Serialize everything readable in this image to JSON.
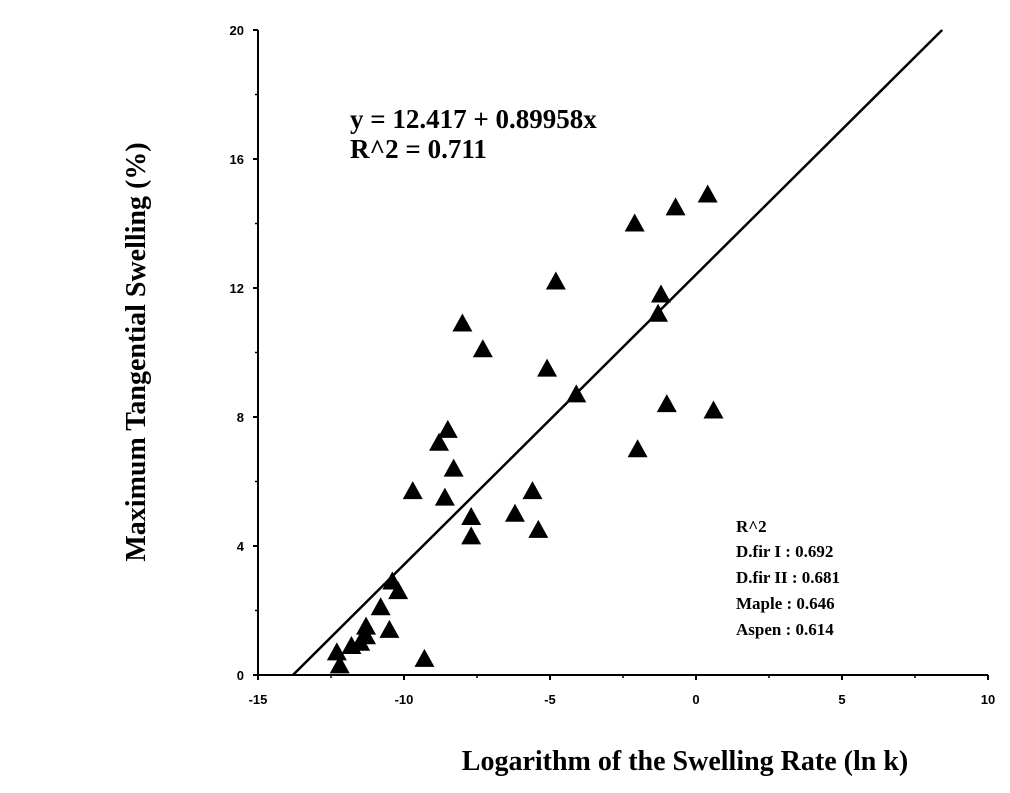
{
  "chart_data": {
    "type": "scatter",
    "title": "",
    "xlabel": "Logarithm of the Swelling Rate  (ln k)",
    "ylabel": "Maximum Tangential Swelling (%)",
    "xlim": [
      -15,
      10
    ],
    "ylim": [
      0,
      20
    ],
    "xticks": [
      -15,
      -10,
      -5,
      0,
      5,
      10
    ],
    "xtick_labels": [
      "-15",
      "-10",
      "-5",
      "0",
      "5",
      "10"
    ],
    "yticks": [
      0,
      4,
      8,
      12,
      16,
      20
    ],
    "ytick_labels": [
      "0",
      "4",
      "8",
      "12",
      "16",
      "20"
    ],
    "grid": false,
    "marker": "triangle",
    "color": "#000000",
    "points": [
      [
        0.4,
        14.9
      ],
      [
        -0.7,
        14.5
      ],
      [
        -2.1,
        14.0
      ],
      [
        -4.8,
        12.2
      ],
      [
        -1.2,
        11.8
      ],
      [
        -1.3,
        11.2
      ],
      [
        -8.0,
        10.9
      ],
      [
        -7.3,
        10.1
      ],
      [
        -5.1,
        9.5
      ],
      [
        -4.1,
        8.7
      ],
      [
        -1.0,
        8.4
      ],
      [
        0.6,
        8.2
      ],
      [
        -2.0,
        7.0
      ],
      [
        -8.5,
        7.6
      ],
      [
        -8.8,
        7.2
      ],
      [
        -8.3,
        6.4
      ],
      [
        -9.7,
        5.7
      ],
      [
        -5.6,
        5.7
      ],
      [
        -8.6,
        5.5
      ],
      [
        -6.2,
        5.0
      ],
      [
        -7.7,
        4.9
      ],
      [
        -5.4,
        4.5
      ],
      [
        -7.7,
        4.3
      ],
      [
        -10.4,
        2.9
      ],
      [
        -10.2,
        2.6
      ],
      [
        -10.8,
        2.1
      ],
      [
        -11.3,
        1.5
      ],
      [
        -10.5,
        1.4
      ],
      [
        -11.3,
        1.2
      ],
      [
        -11.5,
        1.0
      ],
      [
        -11.8,
        0.9
      ],
      [
        -12.3,
        0.7
      ],
      [
        -12.2,
        0.3
      ],
      [
        -9.3,
        0.5
      ]
    ],
    "fit": {
      "intercept": 12.417,
      "slope": 0.89958
    },
    "annotations": {
      "equation": "y = 12.417 + 0.89958x",
      "r2": "R^2 = 0.711"
    },
    "legend": {
      "title": "R^2",
      "entries": [
        "D.fir I  :  0.692",
        "D.fir II  :  0.681",
        "Maple  :  0.646",
        "Aspen  :  0.614"
      ],
      "placement": "bottom-right"
    }
  }
}
